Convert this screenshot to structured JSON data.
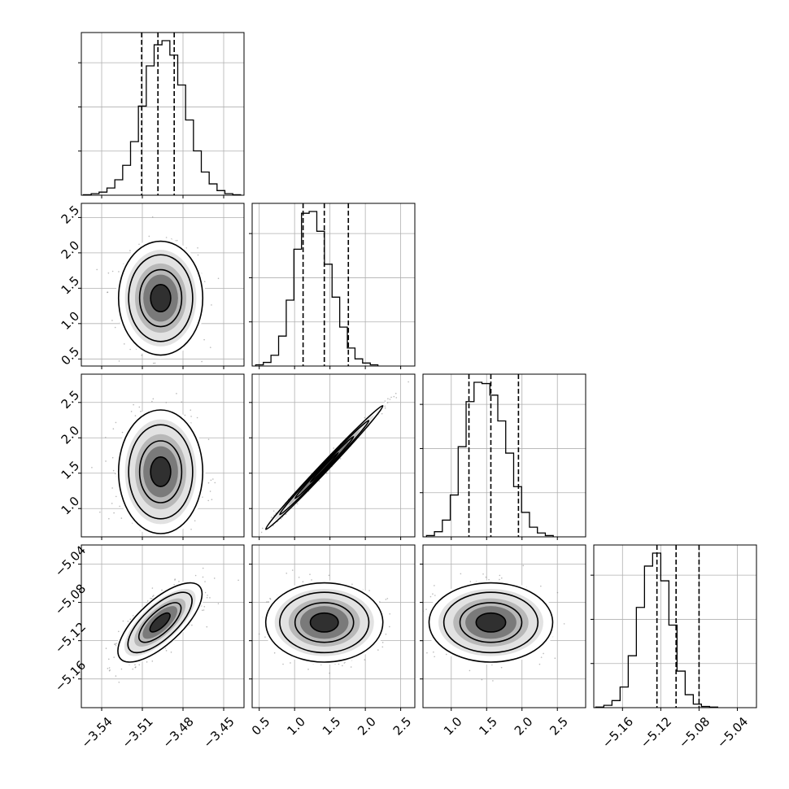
{
  "chart_data": {
    "type": "corner",
    "title": "",
    "colors": {
      "line": "#000000",
      "grid": "#b0b0b0",
      "points": "#7f7f7f"
    },
    "grid": true,
    "parameters": [
      {
        "index": 0,
        "range": [
          -3.555,
          -3.435
        ],
        "x_ticks": [
          -3.54,
          -3.51,
          -3.48,
          -3.45
        ],
        "x_tick_labels": [
          "−3.54",
          "−3.51",
          "−3.48",
          "−3.45"
        ],
        "y_ticks": [],
        "y_tick_labels": []
      },
      {
        "index": 1,
        "range": [
          0.4,
          2.7
        ],
        "x_ticks": [
          0.5,
          1.0,
          1.5,
          2.0,
          2.5
        ],
        "x_tick_labels": [
          "0.5",
          "1.0",
          "1.5",
          "2.0",
          "2.5"
        ],
        "y_ticks": [
          0.5,
          1.0,
          1.5,
          2.0,
          2.5
        ],
        "y_tick_labels": [
          "0.5",
          "1.0",
          "1.5",
          "2.0",
          "2.5"
        ]
      },
      {
        "index": 2,
        "range": [
          0.6,
          2.9
        ],
        "x_ticks": [
          1.0,
          1.5,
          2.0,
          2.5
        ],
        "x_tick_labels": [
          "1.0",
          "1.5",
          "2.0",
          "2.5"
        ],
        "y_ticks": [
          1.0,
          1.5,
          2.0,
          2.5
        ],
        "y_tick_labels": [
          "1.0",
          "1.5",
          "2.0",
          "2.5"
        ]
      },
      {
        "index": 3,
        "range": [
          -5.19,
          -5.02
        ],
        "x_ticks": [
          -5.16,
          -5.12,
          -5.08,
          -5.04
        ],
        "x_tick_labels": [
          "−5.16",
          "−5.12",
          "−5.08",
          "−5.04"
        ],
        "y_ticks": [
          -5.16,
          -5.12,
          -5.08,
          -5.04
        ],
        "y_tick_labels": [
          "−5.16",
          "−5.12",
          "−5.08",
          "−5.04"
        ]
      }
    ],
    "marginals": [
      {
        "param": 0,
        "bin_start": -3.5535,
        "bin_width": 0.0058,
        "counts": [
          1,
          3,
          6,
          14,
          30,
          58,
          104,
          173,
          251,
          292,
          300,
          272,
          214,
          146,
          86,
          45,
          22,
          9,
          3,
          1
        ],
        "quantiles": [
          -3.5105,
          -3.4985,
          -3.4865
        ]
      },
      {
        "param": 1,
        "bin_start": 0.45,
        "bin_width": 0.108,
        "counts": [
          2,
          6,
          18,
          50,
          110,
          195,
          255,
          258,
          225,
          170,
          115,
          65,
          30,
          12,
          5,
          2
        ],
        "quantiles": [
          1.12,
          1.42,
          1.76
        ]
      },
      {
        "param": 2,
        "bin_start": 0.65,
        "bin_width": 0.112,
        "counts": [
          2,
          8,
          26,
          65,
          140,
          210,
          240,
          238,
          220,
          180,
          130,
          78,
          38,
          15,
          6,
          2
        ],
        "quantiles": [
          1.25,
          1.56,
          1.95
        ]
      },
      {
        "param": 3,
        "bin_start": -5.188,
        "bin_width": 0.0085,
        "counts": [
          1,
          4,
          12,
          35,
          88,
          170,
          240,
          262,
          215,
          140,
          62,
          22,
          6,
          2,
          1
        ],
        "quantiles": [
          -5.124,
          -5.104,
          -5.08
        ]
      }
    ],
    "pairs": [
      {
        "x": 0,
        "y": 1,
        "mean": [
          -3.4965,
          1.36
        ],
        "sd": [
          0.0135,
          0.35
        ],
        "corr": 0.0
      },
      {
        "x": 0,
        "y": 2,
        "mean": [
          -3.4965,
          1.52
        ],
        "sd": [
          0.0135,
          0.38
        ],
        "corr": 0.0
      },
      {
        "x": 1,
        "y": 2,
        "mean": [
          1.42,
          1.58
        ],
        "sd": [
          0.36,
          0.38
        ],
        "corr": 0.995
      },
      {
        "x": 0,
        "y": 3,
        "mean": [
          -3.497,
          -5.101
        ],
        "sd": [
          0.0135,
          0.018
        ],
        "corr": 0.72
      },
      {
        "x": 1,
        "y": 3,
        "mean": [
          1.42,
          -5.101
        ],
        "sd": [
          0.36,
          0.018
        ],
        "corr": 0.0
      },
      {
        "x": 2,
        "y": 3,
        "mean": [
          1.56,
          -5.101
        ],
        "sd": [
          0.38,
          0.018
        ],
        "corr": 0.0
      }
    ]
  }
}
